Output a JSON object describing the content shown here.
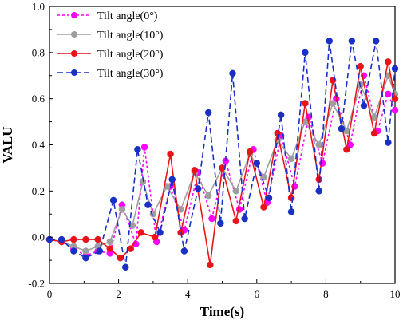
{
  "chart_data": {
    "type": "line",
    "title": "",
    "xlabel": "Time(s)",
    "ylabel": "VALU",
    "xlim": [
      0,
      10
    ],
    "ylim": [
      -0.2,
      1.0
    ],
    "x_ticks": [
      0,
      2,
      4,
      6,
      8,
      10
    ],
    "y_ticks": [
      -0.2,
      0.0,
      0.2,
      0.4,
      0.6,
      0.8,
      1.0
    ],
    "x_tick_labels": [
      "0",
      "2",
      "4",
      "6",
      "8",
      "10"
    ],
    "y_tick_labels": [
      "-0.2",
      "0.0",
      "0.2",
      "0.4",
      "0.6",
      "0.8",
      "1.0"
    ],
    "grid": false,
    "legend_position": "top-left",
    "series": [
      {
        "name": "Tilt angle(0°)",
        "color": "#ff00ff",
        "dash": "dot",
        "x": [
          0.0,
          0.35,
          0.7,
          1.05,
          1.4,
          1.75,
          2.1,
          2.5,
          2.75,
          3.1,
          3.5,
          3.9,
          4.3,
          4.7,
          5.1,
          5.5,
          5.9,
          6.3,
          6.7,
          7.1,
          7.5,
          7.9,
          8.3,
          8.7,
          9.1,
          9.5,
          9.8,
          10.0
        ],
        "y": [
          -0.01,
          -0.02,
          -0.05,
          -0.08,
          -0.06,
          -0.07,
          0.14,
          -0.03,
          0.39,
          -0.02,
          0.22,
          0.03,
          0.28,
          0.08,
          0.33,
          0.12,
          0.38,
          0.15,
          0.44,
          0.22,
          0.52,
          0.32,
          0.6,
          0.4,
          0.7,
          0.46,
          0.62,
          0.55
        ]
      },
      {
        "name": "Tilt angle(10°)",
        "color": "#9e9e9e",
        "dash": "solid",
        "x": [
          0.0,
          0.35,
          0.7,
          1.05,
          1.4,
          1.75,
          2.1,
          2.4,
          2.7,
          3.0,
          3.4,
          3.8,
          4.2,
          4.6,
          5.0,
          5.4,
          5.8,
          6.2,
          6.6,
          7.0,
          7.4,
          7.8,
          8.2,
          8.6,
          9.0,
          9.4,
          9.8,
          10.0
        ],
        "y": [
          -0.01,
          -0.02,
          -0.04,
          -0.06,
          -0.04,
          -0.02,
          0.12,
          0.05,
          0.24,
          0.1,
          0.22,
          0.12,
          0.28,
          0.18,
          0.3,
          0.2,
          0.36,
          0.26,
          0.42,
          0.34,
          0.5,
          0.4,
          0.58,
          0.46,
          0.66,
          0.52,
          0.7,
          0.62
        ]
      },
      {
        "name": "Tilt angle(20°)",
        "color": "#e8141a",
        "dash": "solid",
        "x": [
          0.0,
          0.35,
          0.7,
          1.05,
          1.4,
          1.75,
          2.05,
          2.35,
          2.65,
          3.05,
          3.5,
          3.8,
          4.2,
          4.65,
          5.0,
          5.4,
          5.8,
          6.2,
          6.6,
          7.0,
          7.4,
          7.8,
          8.2,
          8.6,
          9.0,
          9.4,
          9.8,
          10.0
        ],
        "y": [
          -0.01,
          -0.02,
          -0.01,
          -0.01,
          -0.01,
          -0.05,
          -0.09,
          -0.05,
          0.02,
          0.0,
          0.36,
          0.02,
          0.29,
          -0.12,
          0.3,
          0.07,
          0.37,
          0.13,
          0.45,
          0.17,
          0.58,
          0.25,
          0.68,
          0.38,
          0.74,
          0.45,
          0.76,
          0.6
        ]
      },
      {
        "name": "Tilt angle(30°)",
        "color": "#1a2fc4",
        "dash": "dash",
        "x": [
          0.0,
          0.35,
          0.7,
          1.05,
          1.45,
          1.85,
          2.2,
          2.55,
          2.85,
          3.2,
          3.55,
          3.9,
          4.3,
          4.6,
          4.95,
          5.3,
          5.65,
          6.0,
          6.35,
          6.7,
          7.0,
          7.4,
          7.8,
          8.1,
          8.45,
          8.75,
          9.1,
          9.45,
          9.8,
          10.0
        ],
        "y": [
          -0.01,
          -0.01,
          -0.06,
          -0.09,
          -0.06,
          0.16,
          -0.13,
          0.38,
          0.14,
          0.02,
          0.25,
          -0.06,
          0.21,
          0.54,
          0.06,
          0.71,
          0.08,
          0.32,
          0.17,
          0.53,
          0.11,
          0.8,
          0.2,
          0.85,
          0.47,
          0.85,
          0.57,
          0.85,
          0.41,
          0.73
        ]
      }
    ]
  }
}
